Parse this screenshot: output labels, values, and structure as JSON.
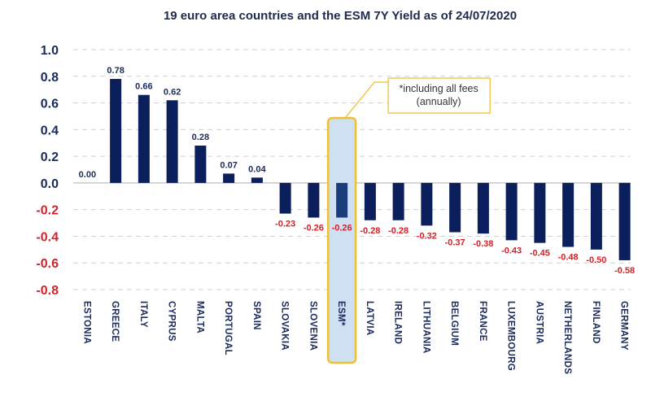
{
  "chart_data": {
    "type": "bar",
    "title": "19 euro area countries and the ESM 7Y Yield as of 24/07/2020",
    "xlabel": "",
    "ylabel": "",
    "ylim": [
      -0.8,
      1.0
    ],
    "yticks": [
      1.0,
      0.8,
      0.6,
      0.4,
      0.2,
      0.0,
      -0.2,
      -0.4,
      -0.6,
      -0.8
    ],
    "ytick_labels": [
      "1.0",
      "0.8",
      "0.6",
      "0.4",
      "0.2",
      "0.0",
      "-0.2",
      "-0.4",
      "-0.6",
      "-0.8"
    ],
    "grid": true,
    "legend": "none",
    "categories": [
      "ESTONIA",
      "GREECE",
      "ITALY",
      "CYPRUS",
      "MALTA",
      "PORTUGAL",
      "SPAIN",
      "SLOVAKIA",
      "SLOVENIA",
      "ESM*",
      "LATVIA",
      "IRELAND",
      "LITHUANIA",
      "BELGIUM",
      "FRANCE",
      "LUXEMBOURG",
      "AUSTRIA",
      "NETHERLANDS",
      "FINLAND",
      "GERMANY"
    ],
    "values": [
      0.0,
      0.78,
      0.66,
      0.62,
      0.28,
      0.07,
      0.04,
      -0.23,
      -0.26,
      -0.26,
      -0.28,
      -0.28,
      -0.32,
      -0.37,
      -0.38,
      -0.43,
      -0.45,
      -0.48,
      -0.5,
      -0.58
    ],
    "data_labels": [
      "0.00",
      "0.78",
      "0.66",
      "0.62",
      "0.28",
      "0.07",
      "0.04",
      "-0.23",
      "-0.26",
      "-0.26",
      "-0.28",
      "-0.28",
      "-0.32",
      "-0.37",
      "-0.38",
      "-0.43",
      "-0.45",
      "-0.48",
      "-0.50",
      "-0.58"
    ],
    "highlighted_category": "ESM*",
    "annotations": [
      {
        "target": "ESM*",
        "lines": [
          "*including all fees",
          "(annually)"
        ]
      }
    ],
    "colors": {
      "bar": "#0b1f5c",
      "bar_highlight": "#1b3d7c",
      "positive_text": "#1a2a5c",
      "negative_text": "#d0232a",
      "highlight_fill": "#cfe0f3",
      "highlight_border": "#f0c030",
      "grid": "#d0d0d0",
      "zero_line": "#c8c8c8"
    }
  }
}
